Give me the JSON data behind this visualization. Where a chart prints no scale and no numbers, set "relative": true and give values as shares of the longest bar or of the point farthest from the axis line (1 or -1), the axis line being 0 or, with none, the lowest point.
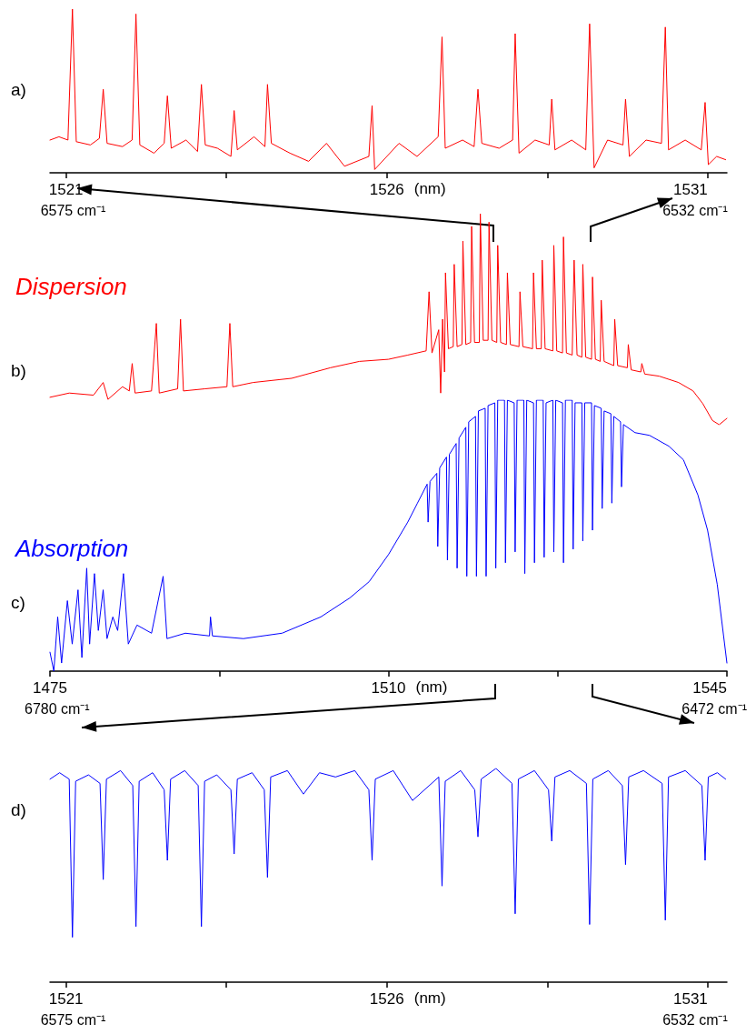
{
  "chart_data": [
    {
      "type": "line",
      "relative": true,
      "annotations": [
        "a)",
        "6575 cm⁻¹",
        "6532 cm⁻¹"
      ],
      "xlabel": "(nm)",
      "xlim": [
        1520.75,
        1531.3
      ],
      "xticks": [
        1521,
        {
          "value": 1523.5,
          "label": null
        },
        1526,
        {
          "value": 1528.5,
          "label": null
        },
        1531
      ],
      "series": [
        {
          "color": "#ff0000",
          "x": [
            1520.75,
            1520.89,
            1521.03,
            1521.1,
            1521.16,
            1521.38,
            1521.52,
            1521.58,
            1521.64,
            1521.88,
            1522.03,
            1522.09,
            1522.15,
            1522.37,
            1522.53,
            1522.58,
            1522.64,
            1522.87,
            1523.05,
            1523.11,
            1523.17,
            1523.36,
            1523.57,
            1523.62,
            1523.67,
            1523.93,
            1524.1,
            1524.14,
            1524.2,
            1524.49,
            1524.78,
            1525.06,
            1525.34,
            1525.72,
            1525.77,
            1525.81,
            1526.19,
            1526.47,
            1526.8,
            1526.86,
            1526.91,
            1527.18,
            1527.36,
            1527.42,
            1527.48,
            1527.75,
            1527.96,
            1528.0,
            1528.06,
            1528.31,
            1528.53,
            1528.57,
            1528.62,
            1528.88,
            1529.1,
            1529.16,
            1529.23,
            1529.44,
            1529.68,
            1529.72,
            1529.78,
            1530.04,
            1530.28,
            1530.34,
            1530.39,
            1530.65,
            1530.9,
            1530.96,
            1531.01,
            1531.14,
            1531.28
          ],
          "values": [
            0.2,
            0.22,
            0.2,
            1.0,
            0.19,
            0.17,
            0.21,
            0.51,
            0.18,
            0.16,
            0.2,
            0.97,
            0.17,
            0.12,
            0.18,
            0.47,
            0.15,
            0.2,
            0.13,
            0.54,
            0.17,
            0.15,
            0.1,
            0.38,
            0.14,
            0.22,
            0.16,
            0.54,
            0.18,
            0.12,
            0.07,
            0.18,
            0.04,
            0.1,
            0.41,
            0.02,
            0.18,
            0.1,
            0.22,
            0.83,
            0.15,
            0.2,
            0.16,
            0.51,
            0.18,
            0.15,
            0.2,
            0.85,
            0.12,
            0.2,
            0.17,
            0.45,
            0.14,
            0.2,
            0.14,
            0.91,
            0.03,
            0.2,
            0.17,
            0.45,
            0.1,
            0.2,
            0.18,
            0.89,
            0.14,
            0.2,
            0.14,
            0.43,
            0.05,
            0.1,
            0.08
          ]
        }
      ]
    },
    {
      "type": "line",
      "relative": true,
      "title": "Dispersion",
      "annotations": [
        "b)"
      ],
      "xlim": [
        1475,
        1545
      ],
      "tick_labels": false,
      "series": [
        {
          "color": "#ff0000",
          "x": [
            1475,
            1477,
            1479.5,
            1480.5,
            1481,
            1482.5,
            1483.2,
            1483.5,
            1483.8,
            1485.5,
            1486,
            1486.3,
            1488.2,
            1488.5,
            1488.8,
            1491,
            1493.3,
            1493.6,
            1493.9,
            1496,
            1500,
            1504,
            1507,
            1510,
            1512,
            1513.9,
            1514.2,
            1514.5,
            1515.2,
            1515.4,
            1515.6,
            1515.8,
            1515.9,
            1516.2,
            1516.7,
            1516.8,
            1517.1,
            1517.6,
            1517.7,
            1518.0,
            1518.5,
            1518.6,
            1518.9,
            1519.4,
            1519.5,
            1519.8,
            1520.3,
            1520.4,
            1520.7,
            1521.2,
            1521.3,
            1521.6,
            1522.2,
            1522.3,
            1522.6,
            1523.5,
            1523.6,
            1523.9,
            1524.9,
            1525.0,
            1525.3,
            1525.8,
            1525.9,
            1526.2,
            1527.0,
            1527.1,
            1527.4,
            1528.0,
            1528.1,
            1528.4,
            1529.0,
            1529.2,
            1529.5,
            1530.0,
            1530.1,
            1530.4,
            1531.0,
            1531.1,
            1531.4,
            1531.9,
            1532.0,
            1532.3,
            1533.3,
            1533.4,
            1533.7,
            1534.7,
            1534.8,
            1535.1,
            1536.1,
            1536.2,
            1536.5,
            1538,
            1540,
            1541.5,
            1542.5,
            1543.5,
            1544.2,
            1545
          ],
          "values": [
            0.13,
            0.15,
            0.14,
            0.2,
            0.12,
            0.18,
            0.16,
            0.29,
            0.15,
            0.16,
            0.48,
            0.15,
            0.17,
            0.5,
            0.16,
            0.17,
            0.18,
            0.48,
            0.18,
            0.2,
            0.22,
            0.27,
            0.3,
            0.31,
            0.33,
            0.35,
            0.63,
            0.34,
            0.45,
            0.15,
            0.5,
            0.25,
            0.72,
            0.36,
            0.37,
            0.76,
            0.37,
            0.38,
            0.87,
            0.38,
            0.39,
            0.94,
            0.39,
            0.39,
            1.0,
            0.4,
            0.4,
            0.96,
            0.4,
            0.39,
            0.85,
            0.39,
            0.38,
            0.72,
            0.38,
            0.37,
            0.63,
            0.37,
            0.36,
            0.72,
            0.36,
            0.36,
            0.78,
            0.36,
            0.35,
            0.85,
            0.35,
            0.34,
            0.89,
            0.34,
            0.33,
            0.78,
            0.33,
            0.32,
            0.76,
            0.32,
            0.31,
            0.7,
            0.31,
            0.3,
            0.59,
            0.3,
            0.28,
            0.5,
            0.28,
            0.27,
            0.38,
            0.26,
            0.25,
            0.29,
            0.24,
            0.23,
            0.2,
            0.16,
            0.1,
            0.02,
            0.0,
            0.03
          ]
        }
      ]
    },
    {
      "type": "line",
      "relative": true,
      "title": "Absorption",
      "annotations": [
        "c)",
        "6780 cm⁻¹",
        "6472 cm⁻¹"
      ],
      "xlabel": "(nm)",
      "xlim": [
        1475,
        1545
      ],
      "xticks": [
        1475,
        {
          "value": 1492.5,
          "label": null
        },
        1510,
        {
          "value": 1527.5,
          "label": null
        },
        1545
      ],
      "series": [
        {
          "color": "#0000ff",
          "x": [
            1475,
            1475.4,
            1475.8,
            1476.2,
            1476.8,
            1477.3,
            1477.9,
            1478.3,
            1478.8,
            1479.1,
            1479.6,
            1480,
            1480.5,
            1480.9,
            1481.5,
            1482,
            1482.6,
            1483.1,
            1484,
            1485.5,
            1486.7,
            1487.1,
            1489,
            1491.5,
            1491.6,
            1491.8,
            1495,
            1499,
            1503,
            1506,
            1508,
            1510,
            1512,
            1513,
            1514.0,
            1514.1,
            1514.3,
            1515.0,
            1515.1,
            1515.3,
            1516.0,
            1516.1,
            1516.3,
            1517.0,
            1517.1,
            1517.3,
            1518.0,
            1518.1,
            1518.3,
            1519.0,
            1519.1,
            1519.3,
            1520.0,
            1520.1,
            1520.3,
            1521.0,
            1521.1,
            1521.3,
            1522.0,
            1522.1,
            1522.3,
            1523.0,
            1523.1,
            1523.3,
            1524.0,
            1524.1,
            1524.3,
            1525.0,
            1525.1,
            1525.3,
            1526.0,
            1526.1,
            1526.3,
            1527.0,
            1527.1,
            1527.3,
            1528.0,
            1528.1,
            1528.3,
            1529.0,
            1529.1,
            1529.3,
            1530.0,
            1530.1,
            1530.3,
            1531.0,
            1531.1,
            1531.3,
            1532.0,
            1532.1,
            1532.3,
            1533.0,
            1533.1,
            1533.3,
            1534.0,
            1534.1,
            1534.3,
            1535.5,
            1537,
            1539,
            1540.5,
            1542,
            1543,
            1544,
            1545
          ],
          "values": [
            0.07,
            0.0,
            0.2,
            0.03,
            0.26,
            0.1,
            0.3,
            0.05,
            0.38,
            0.1,
            0.36,
            0.15,
            0.3,
            0.12,
            0.2,
            0.15,
            0.36,
            0.1,
            0.17,
            0.14,
            0.35,
            0.12,
            0.14,
            0.13,
            0.2,
            0.13,
            0.12,
            0.14,
            0.2,
            0.27,
            0.33,
            0.43,
            0.55,
            0.62,
            0.69,
            0.55,
            0.7,
            0.73,
            0.46,
            0.75,
            0.79,
            0.41,
            0.8,
            0.84,
            0.38,
            0.86,
            0.9,
            0.35,
            0.92,
            0.94,
            0.35,
            0.96,
            0.97,
            0.35,
            0.98,
            0.99,
            0.38,
            1.0,
            1.0,
            0.4,
            1.0,
            0.99,
            0.44,
            1.0,
            1.0,
            0.36,
            1.0,
            0.99,
            0.4,
            1.0,
            1.0,
            0.42,
            0.99,
            1.0,
            0.44,
            1.0,
            0.99,
            0.4,
            1.0,
            1.0,
            0.45,
            0.99,
            0.99,
            0.48,
            0.99,
            0.99,
            0.52,
            0.98,
            0.97,
            0.6,
            0.96,
            0.95,
            0.62,
            0.94,
            0.92,
            0.68,
            0.91,
            0.88,
            0.87,
            0.83,
            0.78,
            0.65,
            0.52,
            0.32,
            0.03
          ]
        }
      ]
    },
    {
      "type": "line",
      "relative": true,
      "annotations": [
        "d)",
        "6575 cm⁻¹",
        "6532 cm⁻¹"
      ],
      "xlabel": "(nm)",
      "xlim": [
        1520.75,
        1531.3
      ],
      "xticks": [
        1521,
        {
          "value": 1523.5,
          "label": null
        },
        1526,
        {
          "value": 1528.5,
          "label": null
        },
        1531
      ],
      "series": [
        {
          "color": "#0000ff",
          "x": [
            1520.75,
            1520.9,
            1521.05,
            1521.1,
            1521.15,
            1521.35,
            1521.53,
            1521.58,
            1521.63,
            1521.85,
            1522.04,
            1522.09,
            1522.14,
            1522.35,
            1522.53,
            1522.58,
            1522.63,
            1522.85,
            1523.06,
            1523.11,
            1523.16,
            1523.35,
            1523.57,
            1523.62,
            1523.67,
            1523.9,
            1524.09,
            1524.14,
            1524.19,
            1524.45,
            1524.7,
            1524.95,
            1525.2,
            1525.5,
            1525.72,
            1525.77,
            1525.82,
            1526.1,
            1526.4,
            1526.81,
            1526.86,
            1526.91,
            1527.15,
            1527.37,
            1527.42,
            1527.47,
            1527.7,
            1527.95,
            1528.0,
            1528.05,
            1528.3,
            1528.52,
            1528.57,
            1528.62,
            1528.85,
            1529.11,
            1529.16,
            1529.21,
            1529.45,
            1529.67,
            1529.72,
            1529.77,
            1530.0,
            1530.29,
            1530.34,
            1530.39,
            1530.65,
            1530.91,
            1530.96,
            1531.01,
            1531.15,
            1531.28
          ],
          "values": [
            0.95,
            0.98,
            0.95,
            0.21,
            0.94,
            0.97,
            0.93,
            0.48,
            0.95,
            0.99,
            0.92,
            0.26,
            0.94,
            0.98,
            0.9,
            0.57,
            0.95,
            0.99,
            0.92,
            0.26,
            0.94,
            0.97,
            0.9,
            0.6,
            0.95,
            0.98,
            0.9,
            0.49,
            0.96,
            0.99,
            0.88,
            0.98,
            0.96,
            0.99,
            0.9,
            0.57,
            0.95,
            0.99,
            0.85,
            0.96,
            0.45,
            0.94,
            0.99,
            0.9,
            0.68,
            0.95,
            1.0,
            0.93,
            0.32,
            0.95,
            0.99,
            0.9,
            0.66,
            0.96,
            0.99,
            0.93,
            0.27,
            0.95,
            0.99,
            0.92,
            0.55,
            0.96,
            0.99,
            0.93,
            0.29,
            0.96,
            0.99,
            0.92,
            0.57,
            0.96,
            0.98,
            0.95
          ]
        }
      ]
    }
  ]
}
